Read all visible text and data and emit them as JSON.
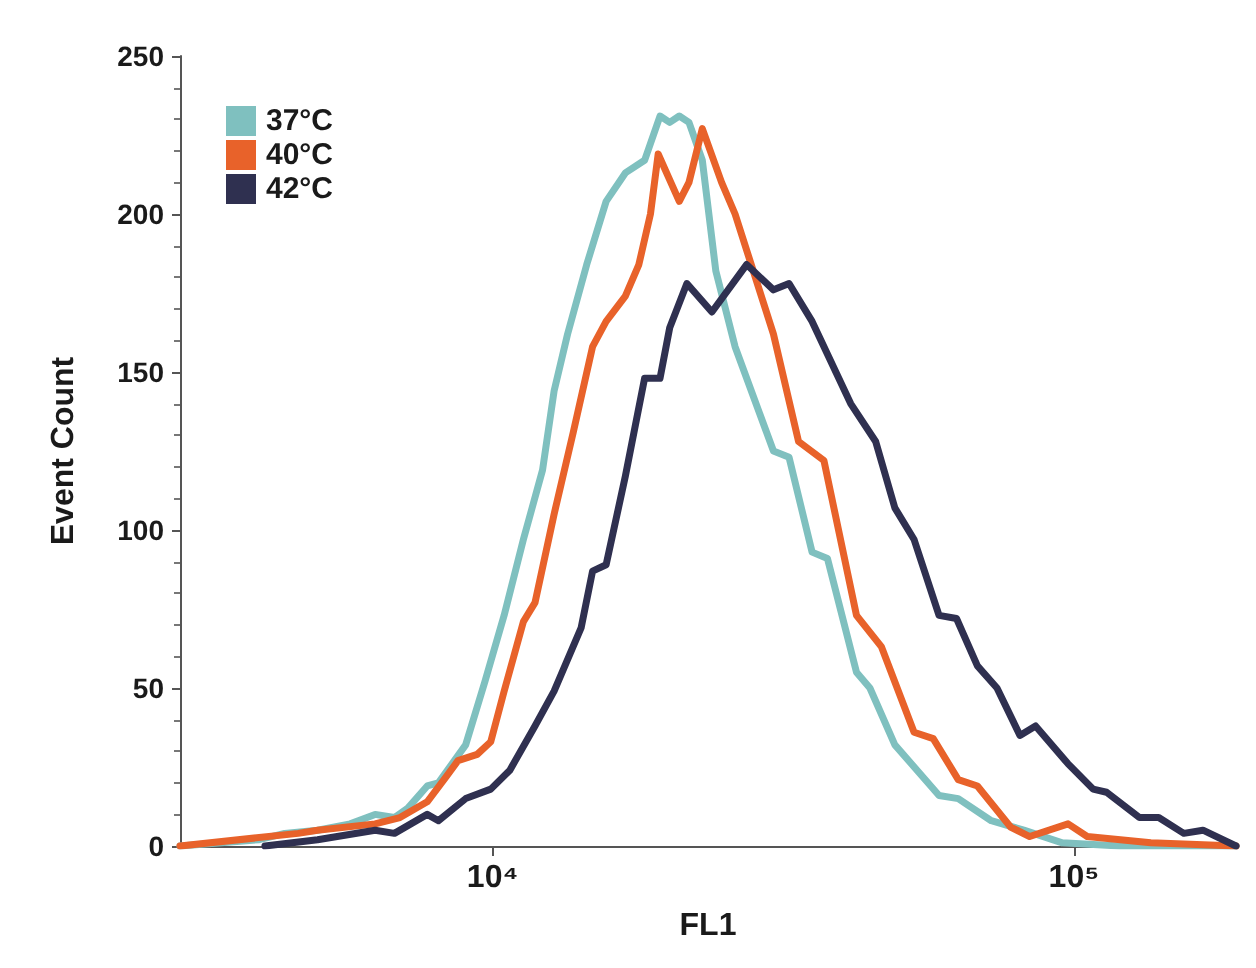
{
  "chart_data": {
    "type": "line",
    "xlabel": "FL1",
    "ylabel": "Event Count",
    "xlim": [
      2900,
      190000
    ],
    "ylim": [
      0,
      250
    ],
    "log": "x",
    "xticks": [
      {
        "value": 10000,
        "label": "10⁴"
      },
      {
        "value": 100000,
        "label": "10⁵"
      }
    ],
    "yticks": [
      0,
      50,
      100,
      150,
      200,
      250
    ],
    "grid": false,
    "legend": "top left",
    "marker": "none",
    "line_style": "solid",
    "series": [
      {
        "name": "37°C",
        "color": "#7fc0bf",
        "x": [
          2900,
          3970,
          4390,
          5000,
          5690,
          6280,
          6780,
          7150,
          7720,
          8070,
          8990,
          9700,
          10470,
          11300,
          12190,
          12760,
          13460,
          14520,
          15680,
          16920,
          18260,
          19410,
          20170,
          20950,
          21770,
          22950,
          24210,
          26130,
          30420,
          32360,
          35450,
          37670,
          42260,
          44570,
          49200,
          58610,
          63240,
          72080,
          82000,
          95500,
          120000,
          190000
        ],
        "values": [
          0,
          2,
          4,
          5,
          7,
          10,
          9,
          12,
          19,
          20,
          32,
          52,
          73,
          97,
          119,
          144,
          162,
          184,
          204,
          213,
          217,
          231,
          229,
          231,
          229,
          217,
          182,
          158,
          125,
          123,
          93,
          91,
          55,
          50,
          32,
          16,
          15,
          8,
          5,
          1,
          0,
          0
        ]
      },
      {
        "name": "40°C",
        "color": "#e8622a",
        "x": [
          2900,
          4630,
          5000,
          6280,
          6930,
          7720,
          8330,
          8720,
          9410,
          9930,
          10470,
          11300,
          11830,
          12760,
          13770,
          14860,
          15680,
          16920,
          17850,
          18690,
          19270,
          20950,
          21770,
          22950,
          24770,
          26130,
          30420,
          33600,
          37150,
          42260,
          46670,
          53090,
          57280,
          63240,
          68230,
          77800,
          83920,
          97700,
          105400,
          135600,
          190000
        ],
        "values": [
          0,
          4,
          5,
          7,
          9,
          14,
          22,
          27,
          29,
          33,
          49,
          71,
          77,
          105,
          131,
          158,
          166,
          174,
          184,
          200,
          219,
          204,
          210,
          227,
          210,
          200,
          162,
          128,
          122,
          73,
          63,
          36,
          34,
          21,
          19,
          6,
          3,
          7,
          3,
          1,
          0
        ]
      },
      {
        "name": "42°C",
        "color": "#2f3050",
        "x": [
          4060,
          5000,
          6280,
          6780,
          7720,
          8070,
          8990,
          9930,
          10710,
          11830,
          12760,
          14200,
          14860,
          15680,
          16920,
          18260,
          19410,
          20170,
          21590,
          23840,
          27350,
          30420,
          32360,
          35450,
          41300,
          45600,
          49200,
          53090,
          58610,
          62810,
          68230,
          73730,
          80750,
          85900,
          97700,
          107900,
          113800,
          129600,
          139900,
          154500,
          166700,
          190000
        ],
        "values": [
          0,
          2,
          5,
          4,
          10,
          8,
          15,
          18,
          24,
          38,
          49,
          69,
          87,
          89,
          117,
          148,
          148,
          164,
          178,
          169,
          184,
          176,
          178,
          166,
          140,
          128,
          107,
          97,
          73,
          72,
          57,
          50,
          35,
          38,
          26,
          18,
          17,
          9,
          9,
          4,
          5,
          0
        ]
      }
    ]
  }
}
